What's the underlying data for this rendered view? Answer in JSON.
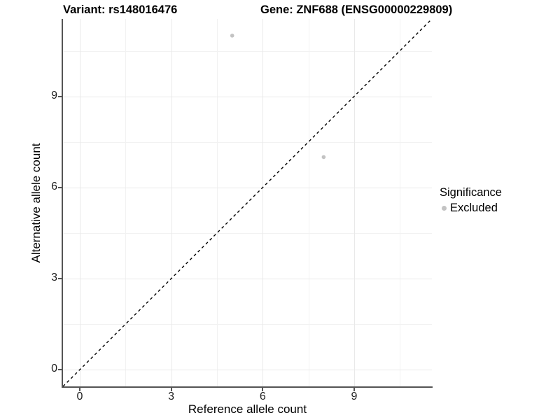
{
  "titles": {
    "left": "Variant: rs148016476",
    "right": "Gene: ZNF688 (ENSG00000229809)"
  },
  "legend": {
    "title": "Significance",
    "items": [
      {
        "label": "Excluded",
        "color": "#c3c3c3"
      }
    ]
  },
  "chart_data": {
    "type": "scatter",
    "title_left": "Variant: rs148016476",
    "title_right": "Gene: ZNF688 (ENSG00000229809)",
    "xlabel": "Reference allele count",
    "ylabel": "Alternative allele count",
    "xlim": [
      -0.55,
      11.55
    ],
    "ylim": [
      -0.55,
      11.55
    ],
    "xticks": [
      0,
      3,
      6,
      9
    ],
    "yticks": [
      0,
      3,
      6,
      9
    ],
    "minor_xticks": [
      1.5,
      4.5,
      7.5,
      10.5
    ],
    "minor_yticks": [
      1.5,
      4.5,
      7.5,
      10.5
    ],
    "grid": true,
    "legend_position": "right",
    "series": [
      {
        "name": "Excluded",
        "color": "#c3c3c3",
        "points": [
          [
            5,
            11
          ],
          [
            8,
            7
          ]
        ]
      }
    ],
    "reference_line": {
      "equation": "y = x",
      "style": "dashed",
      "color": "#000000"
    }
  },
  "style": {
    "axis_line_color": "#545454",
    "tick_color": "#545454",
    "grid_major_color": "#e9e9e9",
    "grid_minor_color": "#f2f2f2",
    "point_color": "#c3c3c3",
    "tick_label_color": "#1f1f1f"
  }
}
